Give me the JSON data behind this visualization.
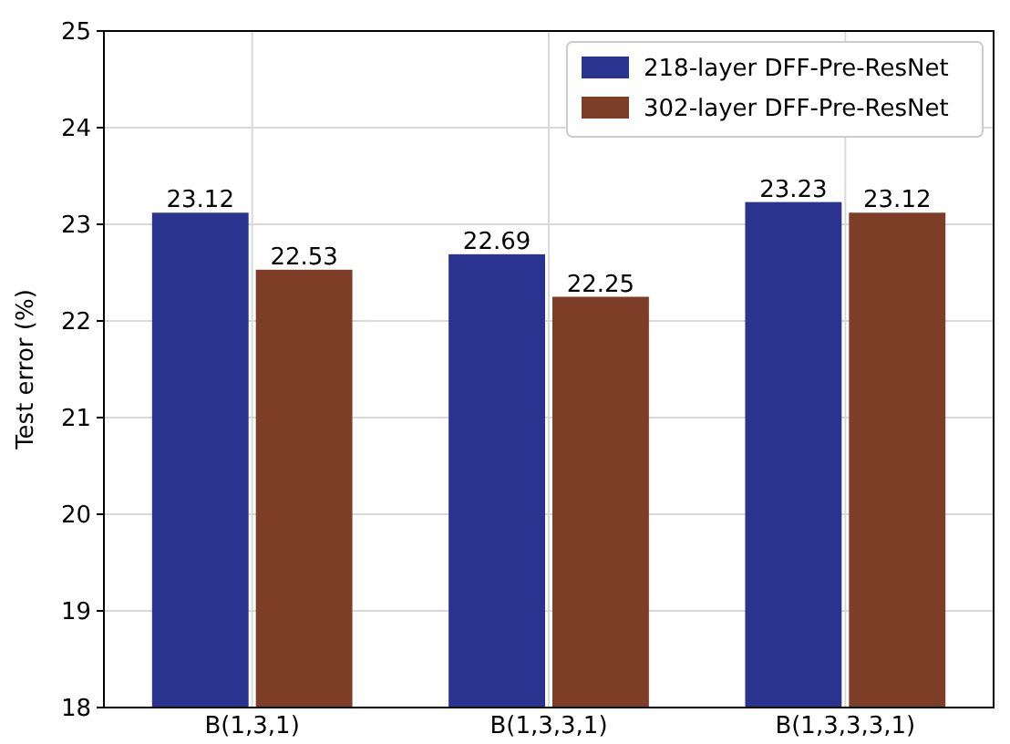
{
  "chart_data": {
    "type": "bar",
    "ylabel": "Test error (%)",
    "categories": [
      "B(1,3,1)",
      "B(1,3,3,1)",
      "B(1,3,3,3,1)"
    ],
    "series": [
      {
        "name": "218-layer DFF-Pre-ResNet",
        "color": "#2b3390",
        "values": [
          23.12,
          22.69,
          23.23
        ]
      },
      {
        "name": "302-layer DFF-Pre-ResNet",
        "color": "#7e3d27",
        "values": [
          22.53,
          22.25,
          23.12
        ]
      }
    ],
    "ylim": [
      18,
      25
    ],
    "yticks": [
      18,
      19,
      20,
      21,
      22,
      23,
      24,
      25
    ],
    "grid": true,
    "legend": "top right",
    "data_labels": true
  }
}
